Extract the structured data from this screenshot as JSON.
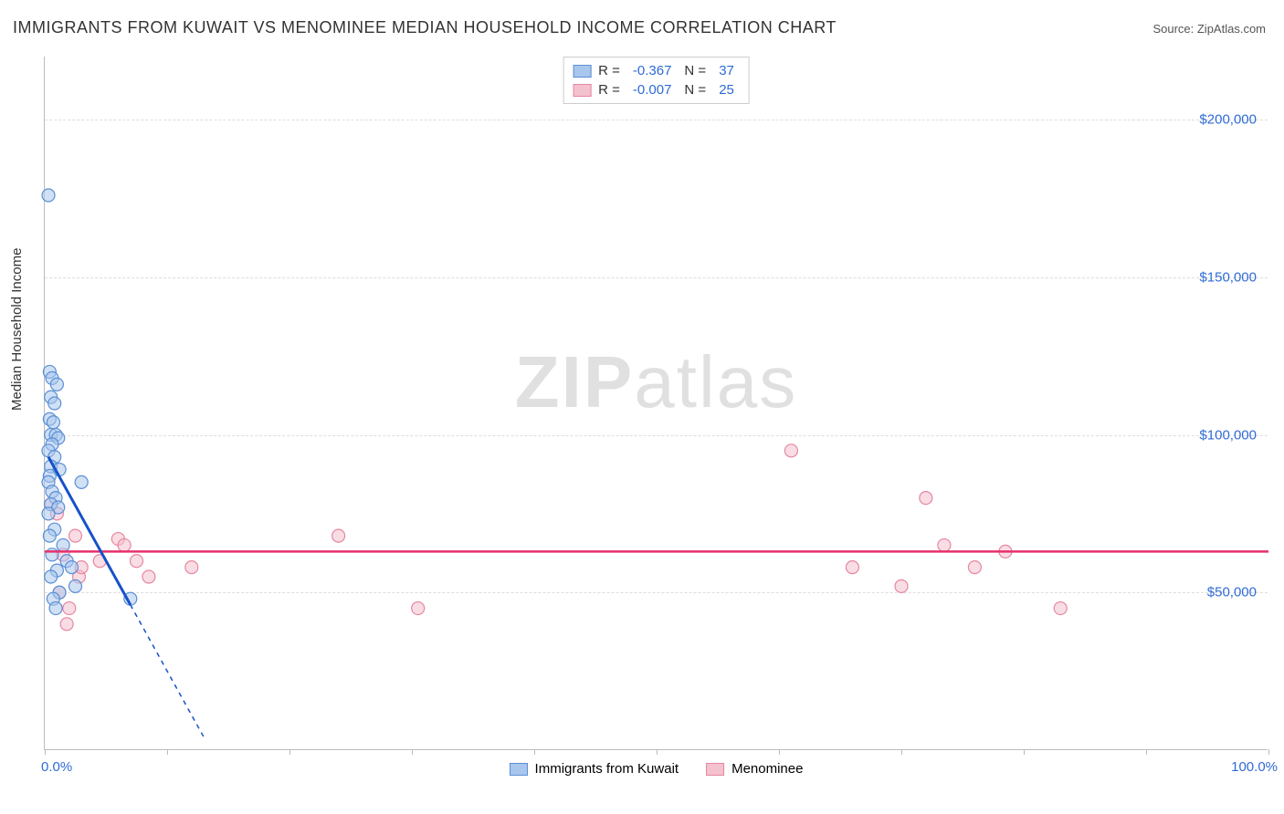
{
  "title": "IMMIGRANTS FROM KUWAIT VS MENOMINEE MEDIAN HOUSEHOLD INCOME CORRELATION CHART",
  "source_label": "Source: ZipAtlas.com",
  "watermark_bold": "ZIP",
  "watermark_light": "atlas",
  "y_axis_label": "Median Household Income",
  "chart": {
    "type": "scatter",
    "xlim": [
      0,
      100
    ],
    "ylim": [
      0,
      220000
    ],
    "x_tick_major": [
      0,
      10,
      20,
      30,
      40,
      50,
      60,
      70,
      80,
      90,
      100
    ],
    "x_tick_labels": {
      "0": "0.0%",
      "100": "100.0%"
    },
    "y_grid": [
      50000,
      100000,
      150000,
      200000
    ],
    "y_tick_labels": {
      "50000": "$50,000",
      "100000": "$100,000",
      "150000": "$150,000",
      "200000": "$200,000"
    },
    "background_color": "#ffffff",
    "grid_color": "#dddddd",
    "axis_color": "#bbbbbb",
    "tick_label_color": "#2f6bd6",
    "marker_radius": 7,
    "series": [
      {
        "name": "Immigrants from Kuwait",
        "color_fill": "#a9c6ec",
        "color_stroke": "#5a8fd6",
        "r_value": "-0.367",
        "n_value": "37",
        "trend": {
          "color": "#1651c9",
          "solid_from_x": 0.3,
          "solid_to_x": 7,
          "dash_to_x": 13,
          "y_at_x0": 93000,
          "slope_per_x": -7000
        },
        "points": [
          {
            "x": 0.3,
            "y": 176000
          },
          {
            "x": 0.4,
            "y": 120000
          },
          {
            "x": 0.6,
            "y": 118000
          },
          {
            "x": 1.0,
            "y": 116000
          },
          {
            "x": 0.5,
            "y": 112000
          },
          {
            "x": 0.8,
            "y": 110000
          },
          {
            "x": 0.4,
            "y": 105000
          },
          {
            "x": 0.7,
            "y": 104000
          },
          {
            "x": 0.5,
            "y": 100000
          },
          {
            "x": 0.9,
            "y": 100000
          },
          {
            "x": 1.1,
            "y": 99000
          },
          {
            "x": 0.6,
            "y": 97000
          },
          {
            "x": 0.3,
            "y": 95000
          },
          {
            "x": 0.8,
            "y": 93000
          },
          {
            "x": 0.5,
            "y": 90000
          },
          {
            "x": 1.2,
            "y": 89000
          },
          {
            "x": 0.4,
            "y": 87000
          },
          {
            "x": 3.0,
            "y": 85000
          },
          {
            "x": 0.3,
            "y": 85000
          },
          {
            "x": 0.6,
            "y": 82000
          },
          {
            "x": 0.9,
            "y": 80000
          },
          {
            "x": 0.5,
            "y": 78000
          },
          {
            "x": 1.1,
            "y": 77000
          },
          {
            "x": 0.3,
            "y": 75000
          },
          {
            "x": 0.8,
            "y": 70000
          },
          {
            "x": 0.4,
            "y": 68000
          },
          {
            "x": 1.5,
            "y": 65000
          },
          {
            "x": 0.6,
            "y": 62000
          },
          {
            "x": 1.8,
            "y": 60000
          },
          {
            "x": 2.2,
            "y": 58000
          },
          {
            "x": 1.0,
            "y": 57000
          },
          {
            "x": 0.5,
            "y": 55000
          },
          {
            "x": 2.5,
            "y": 52000
          },
          {
            "x": 1.2,
            "y": 50000
          },
          {
            "x": 7.0,
            "y": 48000
          },
          {
            "x": 0.7,
            "y": 48000
          },
          {
            "x": 0.9,
            "y": 45000
          }
        ]
      },
      {
        "name": "Menominee",
        "color_fill": "#f4c1ce",
        "color_stroke": "#e687a1",
        "r_value": "-0.007",
        "n_value": "25",
        "trend": {
          "color": "#e6306b",
          "y_const": 63000,
          "x_from": 0,
          "x_to": 100
        },
        "points": [
          {
            "x": 0.5,
            "y": 78000
          },
          {
            "x": 1.0,
            "y": 75000
          },
          {
            "x": 2.5,
            "y": 68000
          },
          {
            "x": 6.0,
            "y": 67000
          },
          {
            "x": 6.5,
            "y": 65000
          },
          {
            "x": 12.0,
            "y": 58000
          },
          {
            "x": 1.5,
            "y": 62000
          },
          {
            "x": 2.8,
            "y": 55000
          },
          {
            "x": 4.5,
            "y": 60000
          },
          {
            "x": 3.0,
            "y": 58000
          },
          {
            "x": 7.5,
            "y": 60000
          },
          {
            "x": 8.5,
            "y": 55000
          },
          {
            "x": 24.0,
            "y": 68000
          },
          {
            "x": 30.5,
            "y": 45000
          },
          {
            "x": 1.2,
            "y": 50000
          },
          {
            "x": 2.0,
            "y": 45000
          },
          {
            "x": 1.8,
            "y": 40000
          },
          {
            "x": 61.0,
            "y": 95000
          },
          {
            "x": 72.0,
            "y": 80000
          },
          {
            "x": 66.0,
            "y": 58000
          },
          {
            "x": 73.5,
            "y": 65000
          },
          {
            "x": 76.0,
            "y": 58000
          },
          {
            "x": 78.5,
            "y": 63000
          },
          {
            "x": 70.0,
            "y": 52000
          },
          {
            "x": 83.0,
            "y": 45000
          }
        ]
      }
    ]
  },
  "legend_labels": {
    "r": "R =",
    "n": "N ="
  }
}
